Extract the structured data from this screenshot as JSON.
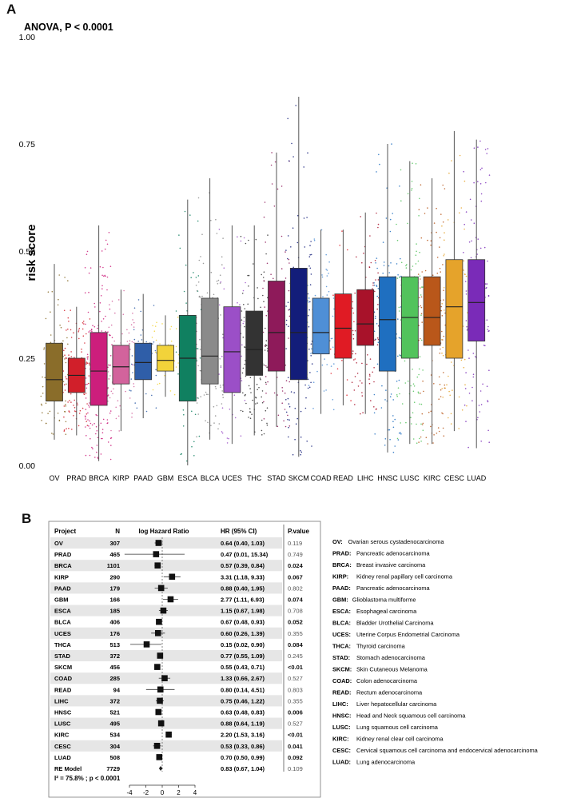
{
  "panels": {
    "a_label": "A",
    "b_label": "B"
  },
  "chart_data": [
    {
      "type": "box",
      "annotation": "ANOVA, P < 0.0001",
      "ylabel": "risk score",
      "xlabel": "",
      "ylim": [
        0,
        1
      ],
      "yticks": [
        "0.00",
        "0.25",
        "0.50",
        "0.75",
        "1.00"
      ],
      "categories": [
        "OV",
        "PRAD",
        "BRCA",
        "KIRP",
        "PAAD",
        "GBM",
        "ESCA",
        "BLCA",
        "UCES",
        "THC",
        "STAD",
        "SKCM",
        "COAD",
        "READ",
        "LIHC",
        "HNSC",
        "LUSC",
        "KIRC",
        "CESC",
        "LUAD"
      ],
      "series": [
        {
          "name": "OV",
          "color": "#8a6d2a",
          "q1": 0.15,
          "median": 0.2,
          "q3": 0.285,
          "wlo": 0.06,
          "whi": 0.47,
          "n": 307
        },
        {
          "name": "PRAD",
          "color": "#d11f2a",
          "q1": 0.17,
          "median": 0.21,
          "q3": 0.25,
          "wlo": 0.07,
          "whi": 0.37,
          "n": 465
        },
        {
          "name": "BRCA",
          "color": "#cc1e7c",
          "q1": 0.14,
          "median": 0.22,
          "q3": 0.31,
          "wlo": 0.01,
          "whi": 0.56,
          "n": 1101
        },
        {
          "name": "KIRP",
          "color": "#d2639c",
          "q1": 0.19,
          "median": 0.23,
          "q3": 0.28,
          "wlo": 0.08,
          "whi": 0.41,
          "n": 290
        },
        {
          "name": "PAAD",
          "color": "#2f5ea8",
          "q1": 0.2,
          "median": 0.24,
          "q3": 0.285,
          "wlo": 0.11,
          "whi": 0.4,
          "n": 179
        },
        {
          "name": "GBM",
          "color": "#f2d33a",
          "q1": 0.22,
          "median": 0.245,
          "q3": 0.28,
          "wlo": 0.16,
          "whi": 0.35,
          "n": 166
        },
        {
          "name": "ESCA",
          "color": "#108060",
          "q1": 0.15,
          "median": 0.25,
          "q3": 0.35,
          "wlo": 0.0,
          "whi": 0.62,
          "n": 185
        },
        {
          "name": "BLCA",
          "color": "#8a8a8a",
          "q1": 0.19,
          "median": 0.255,
          "q3": 0.39,
          "wlo": 0.06,
          "whi": 0.67,
          "n": 406
        },
        {
          "name": "UCES",
          "color": "#9b4fc7",
          "q1": 0.17,
          "median": 0.265,
          "q3": 0.37,
          "wlo": 0.05,
          "whi": 0.56,
          "n": 176
        },
        {
          "name": "THC",
          "color": "#333333",
          "q1": 0.21,
          "median": 0.27,
          "q3": 0.36,
          "wlo": 0.07,
          "whi": 0.56,
          "n": 513
        },
        {
          "name": "STAD",
          "color": "#8e1a5a",
          "q1": 0.22,
          "median": 0.31,
          "q3": 0.43,
          "wlo": 0.09,
          "whi": 0.73,
          "n": 372
        },
        {
          "name": "SKCM",
          "color": "#131d7a",
          "q1": 0.2,
          "median": 0.31,
          "q3": 0.46,
          "wlo": 0.02,
          "whi": 0.86,
          "n": 456
        },
        {
          "name": "COAD",
          "color": "#4f8fd6",
          "q1": 0.26,
          "median": 0.31,
          "q3": 0.39,
          "wlo": 0.12,
          "whi": 0.55,
          "n": 285
        },
        {
          "name": "READ",
          "color": "#e01b24",
          "q1": 0.25,
          "median": 0.32,
          "q3": 0.4,
          "wlo": 0.14,
          "whi": 0.55,
          "n": 94
        },
        {
          "name": "LIHC",
          "color": "#a8122a",
          "q1": 0.28,
          "median": 0.33,
          "q3": 0.41,
          "wlo": 0.12,
          "whi": 0.59,
          "n": 372
        },
        {
          "name": "HNSC",
          "color": "#1f6fc0",
          "q1": 0.22,
          "median": 0.34,
          "q3": 0.44,
          "wlo": 0.03,
          "whi": 0.75,
          "n": 521
        },
        {
          "name": "LUSC",
          "color": "#52c35c",
          "q1": 0.25,
          "median": 0.345,
          "q3": 0.44,
          "wlo": 0.05,
          "whi": 0.71,
          "n": 495
        },
        {
          "name": "KIRC",
          "color": "#b9571a",
          "q1": 0.28,
          "median": 0.345,
          "q3": 0.44,
          "wlo": 0.05,
          "whi": 0.67,
          "n": 534
        },
        {
          "name": "CESC",
          "color": "#e5a32b",
          "q1": 0.25,
          "median": 0.37,
          "q3": 0.48,
          "wlo": 0.08,
          "whi": 0.78,
          "n": 304
        },
        {
          "name": "LUAD",
          "color": "#7a2bb8",
          "q1": 0.29,
          "median": 0.38,
          "q3": 0.48,
          "wlo": 0.04,
          "whi": 0.76,
          "n": 508
        }
      ]
    },
    {
      "type": "forest",
      "headers": {
        "project": "Project",
        "n": "N",
        "lhr": "log Hazard Ratio",
        "hr": "HR (95% CI)",
        "p": "P.value"
      },
      "xlim": [
        -4,
        4
      ],
      "xticks": [
        "-4",
        "-2",
        "0",
        "2",
        "4"
      ],
      "rows": [
        {
          "project": "OV",
          "n": "307",
          "hr": "0.64 (0.40, 1.03)",
          "p": "0.119",
          "est": -0.45,
          "lo": -0.92,
          "hi": 0.03,
          "bold": false,
          "desc_code": "OV:",
          "desc": "Ovarian serous cystadenocarcinoma"
        },
        {
          "project": "PRAD",
          "n": "465",
          "hr": "0.47 (0.01, 15.34)",
          "p": "0.749",
          "est": -0.75,
          "lo": -4.6,
          "hi": 2.73,
          "bold": false,
          "desc_code": "PRAD:",
          "desc": "Pancreatic adenocarcinoma"
        },
        {
          "project": "BRCA",
          "n": "1101",
          "hr": "0.57 (0.39, 0.84)",
          "p": "0.024",
          "est": -0.56,
          "lo": -0.94,
          "hi": -0.17,
          "bold": true,
          "desc_code": "BRCA:",
          "desc": "Breast invasive carcinoma"
        },
        {
          "project": "KIRP",
          "n": "290",
          "hr": "3.31 (1.18, 9.33)",
          "p": "0.067",
          "est": 1.2,
          "lo": 0.17,
          "hi": 2.23,
          "bold": true,
          "desc_code": "KIRP:",
          "desc": "Kidney renal papillary cell carcinoma"
        },
        {
          "project": "PAAD",
          "n": "179",
          "hr": "0.88 (0.40, 1.95)",
          "p": "0.802",
          "est": -0.13,
          "lo": -0.92,
          "hi": 0.67,
          "bold": false,
          "desc_code": "PAAD:",
          "desc": "Pancreatic adenocarcinoma"
        },
        {
          "project": "GBM",
          "n": "166",
          "hr": "2.77 (1.11, 6.93)",
          "p": "0.074",
          "est": 1.02,
          "lo": 0.1,
          "hi": 1.94,
          "bold": true,
          "desc_code": "GBM:",
          "desc": "Glioblastoma multiforme"
        },
        {
          "project": "ESCA",
          "n": "185",
          "hr": "1.15 (0.67, 1.98)",
          "p": "0.708",
          "est": 0.14,
          "lo": -0.4,
          "hi": 0.68,
          "bold": false,
          "desc_code": "ESCA:",
          "desc": "Esophageal carcinoma"
        },
        {
          "project": "BLCA",
          "n": "406",
          "hr": "0.67 (0.48, 0.93)",
          "p": "0.052",
          "est": -0.4,
          "lo": -0.73,
          "hi": -0.07,
          "bold": true,
          "desc_code": "BLCA:",
          "desc": "Bladder Urothelial Carcinoma"
        },
        {
          "project": "UCES",
          "n": "176",
          "hr": "0.60 (0.26, 1.39)",
          "p": "0.355",
          "est": -0.51,
          "lo": -1.35,
          "hi": 0.33,
          "bold": false,
          "desc_code": "UCES:",
          "desc": "Uterine Corpus Endometrial Carcinoma"
        },
        {
          "project": "THCA",
          "n": "513",
          "hr": "0.15 (0.02, 0.90)",
          "p": "0.084",
          "est": -1.9,
          "lo": -3.9,
          "hi": -0.1,
          "bold": true,
          "desc_code": "THCA:",
          "desc": "Thyroid carcinoma"
        },
        {
          "project": "STAD",
          "n": "372",
          "hr": "0.77 (0.55, 1.09)",
          "p": "0.245",
          "est": -0.26,
          "lo": -0.6,
          "hi": 0.09,
          "bold": false,
          "desc_code": "STAD:",
          "desc": "Stomach adenocarcinoma"
        },
        {
          "project": "SKCM",
          "n": "456",
          "hr": "0.55 (0.43, 0.71)",
          "p": "<0.01",
          "est": -0.6,
          "lo": -0.84,
          "hi": -0.34,
          "bold": true,
          "desc_code": "SKCM:",
          "desc": "Skin Cutaneous Melanoma"
        },
        {
          "project": "COAD",
          "n": "285",
          "hr": "1.33 (0.66, 2.67)",
          "p": "0.527",
          "est": 0.29,
          "lo": -0.42,
          "hi": 0.98,
          "bold": false,
          "desc_code": "COAD:",
          "desc": "Colon adenocarcinoma"
        },
        {
          "project": "READ",
          "n": "94",
          "hr": "0.80 (0.14, 4.51)",
          "p": "0.803",
          "est": -0.22,
          "lo": -1.97,
          "hi": 1.51,
          "bold": false,
          "desc_code": "READ:",
          "desc": "Rectum adenocarcinoma"
        },
        {
          "project": "LIHC",
          "n": "372",
          "hr": "0.75 (0.46, 1.22)",
          "p": "0.355",
          "est": -0.29,
          "lo": -0.78,
          "hi": 0.2,
          "bold": false,
          "desc_code": "LIHC:",
          "desc": "Liver hepatocellular carcinoma"
        },
        {
          "project": "HNSC",
          "n": "521",
          "hr": "0.63 (0.48, 0.83)",
          "p": "0.006",
          "est": -0.46,
          "lo": -0.73,
          "hi": -0.19,
          "bold": true,
          "desc_code": "HNSC:",
          "desc": "Head and Neck squamous cell carcinoma"
        },
        {
          "project": "LUSC",
          "n": "495",
          "hr": "0.88 (0.64, 1.19)",
          "p": "0.527",
          "est": -0.13,
          "lo": -0.45,
          "hi": 0.17,
          "bold": false,
          "desc_code": "LUSC:",
          "desc": "Lung squamous cell carcinoma"
        },
        {
          "project": "KIRC",
          "n": "534",
          "hr": "2.20 (1.53, 3.16)",
          "p": "<0.01",
          "est": 0.79,
          "lo": 0.43,
          "hi": 1.15,
          "bold": true,
          "desc_code": "KIRC:",
          "desc": "Kidney renal clear cell carcinoma"
        },
        {
          "project": "CESC",
          "n": "304",
          "hr": "0.53 (0.33, 0.86)",
          "p": "0.041",
          "est": -0.63,
          "lo": -1.11,
          "hi": -0.15,
          "bold": true,
          "desc_code": "CESC:",
          "desc": "Cervical squamous cell carcinoma and endocervical adenocarcinoma"
        },
        {
          "project": "LUAD",
          "n": "508",
          "hr": "0.70 (0.50, 0.99)",
          "p": "0.092",
          "est": -0.36,
          "lo": -0.69,
          "hi": -0.01,
          "bold": true,
          "desc_code": "LUAD:",
          "desc": "Lung adenocarcinoma"
        }
      ],
      "summary": {
        "project": "RE Model",
        "n": "7729",
        "hr": "0.83 (0.67, 1.04)",
        "p": "0.109",
        "est": -0.19,
        "lo": -0.4,
        "hi": 0.04
      },
      "heterogeneity": "I² = 75.8% ; p < 0.0001"
    }
  ]
}
